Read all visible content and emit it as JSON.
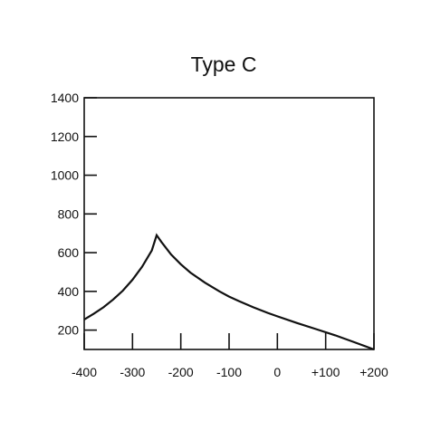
{
  "chart_data": {
    "type": "line",
    "title": "Type C",
    "xlabel": "",
    "ylabel": "",
    "xlim": [
      -400,
      200
    ],
    "ylim": [
      100,
      1400
    ],
    "x_ticks": [
      -400,
      -300,
      -200,
      -100,
      0,
      100,
      200
    ],
    "x_tick_labels": [
      "-400",
      "-300",
      "-200",
      "-100",
      "0",
      "+100",
      "+200"
    ],
    "y_ticks": [
      200,
      400,
      600,
      800,
      1000,
      1200,
      1400
    ],
    "y_tick_labels": [
      "200",
      "400",
      "600",
      "800",
      "1000",
      "1200",
      "1400"
    ],
    "grid": false,
    "series": [
      {
        "x": [
          -400,
          -380,
          -360,
          -340,
          -320,
          -300,
          -280,
          -260,
          -250,
          -240,
          -220,
          -200,
          -180,
          -150,
          -120,
          -100,
          -80,
          -50,
          -20,
          0,
          40,
          80,
          120,
          160,
          200
        ],
        "y": [
          255,
          285,
          318,
          358,
          404,
          460,
          528,
          612,
          690,
          655,
          590,
          540,
          497,
          445,
          400,
          373,
          350,
          318,
          289,
          271,
          237,
          205,
          173,
          137,
          100
        ]
      }
    ]
  }
}
